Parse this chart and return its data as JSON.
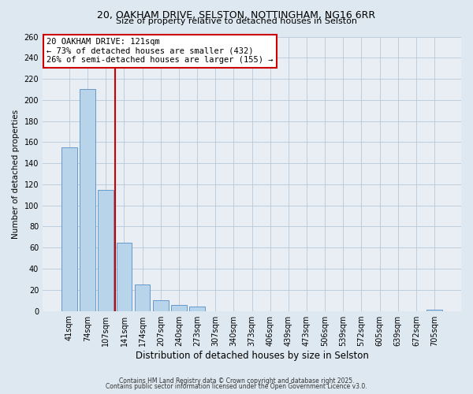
{
  "title1": "20, OAKHAM DRIVE, SELSTON, NOTTINGHAM, NG16 6RR",
  "title2": "Size of property relative to detached houses in Selston",
  "xlabel": "Distribution of detached houses by size in Selston",
  "ylabel": "Number of detached properties",
  "categories": [
    "41sqm",
    "74sqm",
    "107sqm",
    "141sqm",
    "174sqm",
    "207sqm",
    "240sqm",
    "273sqm",
    "307sqm",
    "340sqm",
    "373sqm",
    "406sqm",
    "439sqm",
    "473sqm",
    "506sqm",
    "539sqm",
    "572sqm",
    "605sqm",
    "639sqm",
    "672sqm",
    "705sqm"
  ],
  "values": [
    155,
    210,
    115,
    65,
    25,
    10,
    6,
    4,
    0,
    0,
    0,
    0,
    0,
    0,
    0,
    0,
    0,
    0,
    0,
    0,
    1
  ],
  "bar_color": "#b8d4ea",
  "bar_edge_color": "#6699cc",
  "vline_color": "#cc0000",
  "vline_pos": 2.5,
  "annotation_text_line1": "20 OAKHAM DRIVE: 121sqm",
  "annotation_text_line2": "← 73% of detached houses are smaller (432)",
  "annotation_text_line3": "26% of semi-detached houses are larger (155) →",
  "ylim": [
    0,
    260
  ],
  "yticks": [
    0,
    20,
    40,
    60,
    80,
    100,
    120,
    140,
    160,
    180,
    200,
    220,
    240,
    260
  ],
  "footer1": "Contains HM Land Registry data © Crown copyright and database right 2025.",
  "footer2": "Contains public sector information licensed under the Open Government Licence v3.0.",
  "bg_color": "#dde8f0",
  "plot_bg_color": "#e8eef4",
  "grid_color": "#b8c8d8",
  "title1_fontsize": 9.0,
  "title2_fontsize": 8.0,
  "xlabel_fontsize": 8.5,
  "ylabel_fontsize": 7.5,
  "annot_fontsize": 7.5,
  "tick_fontsize": 7.0,
  "footer_fontsize": 5.5
}
